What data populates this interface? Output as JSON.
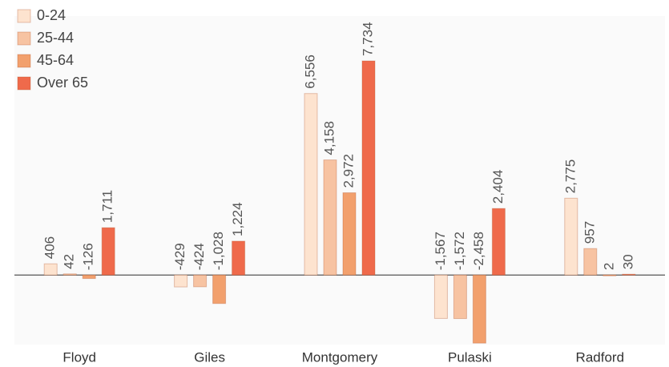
{
  "chart_data": {
    "type": "bar",
    "categories": [
      "Floyd",
      "Giles",
      "Montgomery",
      "Pulaski",
      "Radford"
    ],
    "series": [
      {
        "name": "0-24",
        "color": "#fde3cf",
        "values": [
          406,
          -429,
          6556,
          -1567,
          2775
        ],
        "value_labels": [
          "406",
          "-429",
          "6,556",
          "-1,567",
          "2,775"
        ]
      },
      {
        "name": "25-44",
        "color": "#f7c3a2",
        "values": [
          42,
          -424,
          4158,
          -1572,
          957
        ],
        "value_labels": [
          "42",
          "-424",
          "4,158",
          "-1,572",
          "957"
        ]
      },
      {
        "name": "45-64",
        "color": "#f2a06d",
        "values": [
          -126,
          -1028,
          2972,
          -2458,
          2
        ],
        "value_labels": [
          "-126",
          "-1,028",
          "2,972",
          "-2,458",
          "2"
        ]
      },
      {
        "name": "Over 65",
        "color": "#ef6a4b",
        "values": [
          1711,
          1224,
          7734,
          2404,
          30
        ],
        "value_labels": [
          "1,711",
          "1,224",
          "7,734",
          "2,404",
          "30"
        ]
      }
    ],
    "ylim": [
      -2800,
      9500
    ],
    "legend": "top-left"
  }
}
